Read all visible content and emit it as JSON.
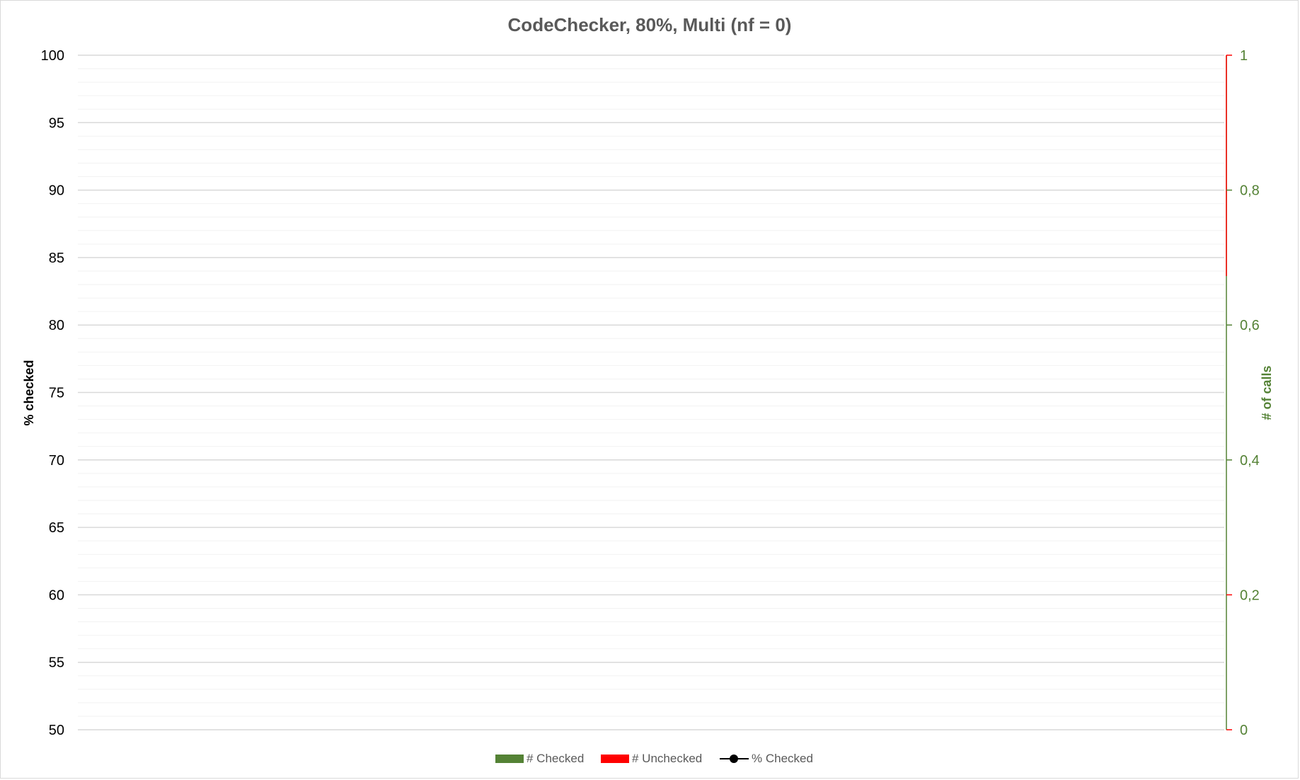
{
  "chart_data": {
    "type": "bar",
    "title": "CodeChecker, 80%, Multi (nf = 0)",
    "categories": [],
    "y_left": {
      "label": "% checked",
      "range": [
        50,
        100
      ],
      "major_ticks": [
        50,
        55,
        60,
        65,
        70,
        75,
        80,
        85,
        90,
        95,
        100
      ],
      "tick_labels": [
        "50",
        "55",
        "60",
        "65",
        "70",
        "75",
        "80",
        "85",
        "90",
        "95",
        "100"
      ],
      "minor_step": 1,
      "color": "#000000"
    },
    "y_right": {
      "label": "# of calls",
      "range": [
        0,
        1
      ],
      "major_ticks": [
        0,
        0.2,
        0.4,
        0.6,
        0.8,
        1
      ],
      "tick_labels": [
        "0",
        "0,2",
        "0,4",
        "0,6",
        "0,8",
        "1"
      ],
      "color": "#548235"
    },
    "series": [
      {
        "name": "# Checked",
        "kind": "bar",
        "axis": "right",
        "color": "#548235",
        "values": []
      },
      {
        "name": "# Unchecked",
        "kind": "bar",
        "axis": "right",
        "color": "#ff0000",
        "values": []
      },
      {
        "name": "% Checked",
        "kind": "line",
        "axis": "left",
        "color": "#000000",
        "marker": "circle",
        "values": []
      }
    ],
    "grid": true,
    "legend_position": "bottom"
  },
  "colors": {
    "title": "#595959",
    "major_grid": "#d9d9d9",
    "minor_grid": "#f2f2f2",
    "right_axis_green": "#548235",
    "right_axis_red": "#ff0000"
  }
}
